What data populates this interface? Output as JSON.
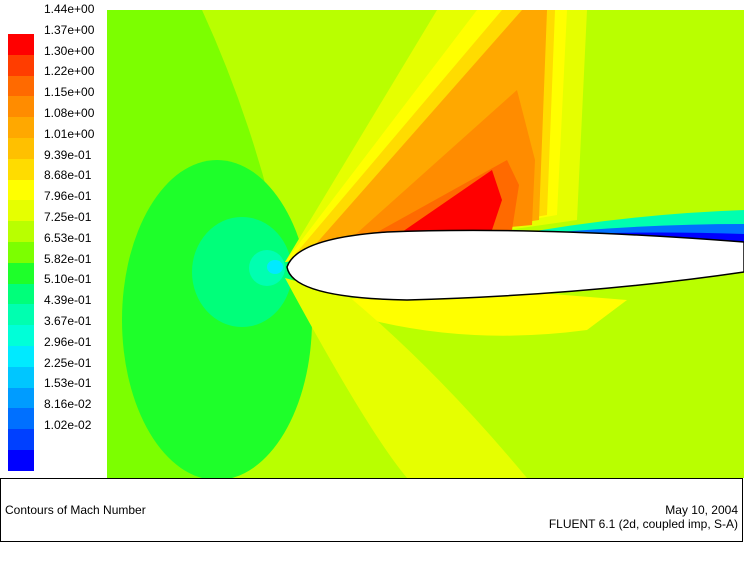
{
  "chart_data": {
    "type": "heatmap",
    "quantity": "Mach Number",
    "title": "Contours of Mach Number",
    "levels": [
      {
        "value": 1.44,
        "label": "1.44e+00",
        "color": "#ff0000"
      },
      {
        "value": 1.37,
        "label": "1.37e+00",
        "color": "#ff3d00"
      },
      {
        "value": 1.3,
        "label": "1.30e+00",
        "color": "#ff6a00"
      },
      {
        "value": 1.22,
        "label": "1.22e+00",
        "color": "#ff8c00"
      },
      {
        "value": 1.15,
        "label": "1.15e+00",
        "color": "#ffa800"
      },
      {
        "value": 1.08,
        "label": "1.08e+00",
        "color": "#ffc000"
      },
      {
        "value": 1.01,
        "label": "1.01e+00",
        "color": "#ffdc00"
      },
      {
        "value": 0.939,
        "label": "9.39e-01",
        "color": "#ffff00"
      },
      {
        "value": 0.868,
        "label": "8.68e-01",
        "color": "#e6ff00"
      },
      {
        "value": 0.796,
        "label": "7.96e-01",
        "color": "#b9ff00"
      },
      {
        "value": 0.725,
        "label": "7.25e-01",
        "color": "#7cff00"
      },
      {
        "value": 0.653,
        "label": "6.53e-01",
        "color": "#1eff2a"
      },
      {
        "value": 0.582,
        "label": "5.82e-01",
        "color": "#00ff7a"
      },
      {
        "value": 0.51,
        "label": "5.10e-01",
        "color": "#00ffb0"
      },
      {
        "value": 0.439,
        "label": "4.39e-01",
        "color": "#00ffd8"
      },
      {
        "value": 0.367,
        "label": "3.67e-01",
        "color": "#00eaff"
      },
      {
        "value": 0.296,
        "label": "2.96e-01",
        "color": "#00c6ff"
      },
      {
        "value": 0.225,
        "label": "2.25e-01",
        "color": "#009cff"
      },
      {
        "value": 0.153,
        "label": "1.53e-01",
        "color": "#0070ff"
      },
      {
        "value": 0.0816,
        "label": "8.16e-02",
        "color": "#0040ff"
      },
      {
        "value": 0.0102,
        "label": "1.02e-02",
        "color": "#0000ff"
      }
    ]
  },
  "footer": {
    "title": "Contours of Mach Number",
    "date": "May 10, 2004",
    "solver": "FLUENT 6.1 (2d, coupled imp, S-A)"
  }
}
